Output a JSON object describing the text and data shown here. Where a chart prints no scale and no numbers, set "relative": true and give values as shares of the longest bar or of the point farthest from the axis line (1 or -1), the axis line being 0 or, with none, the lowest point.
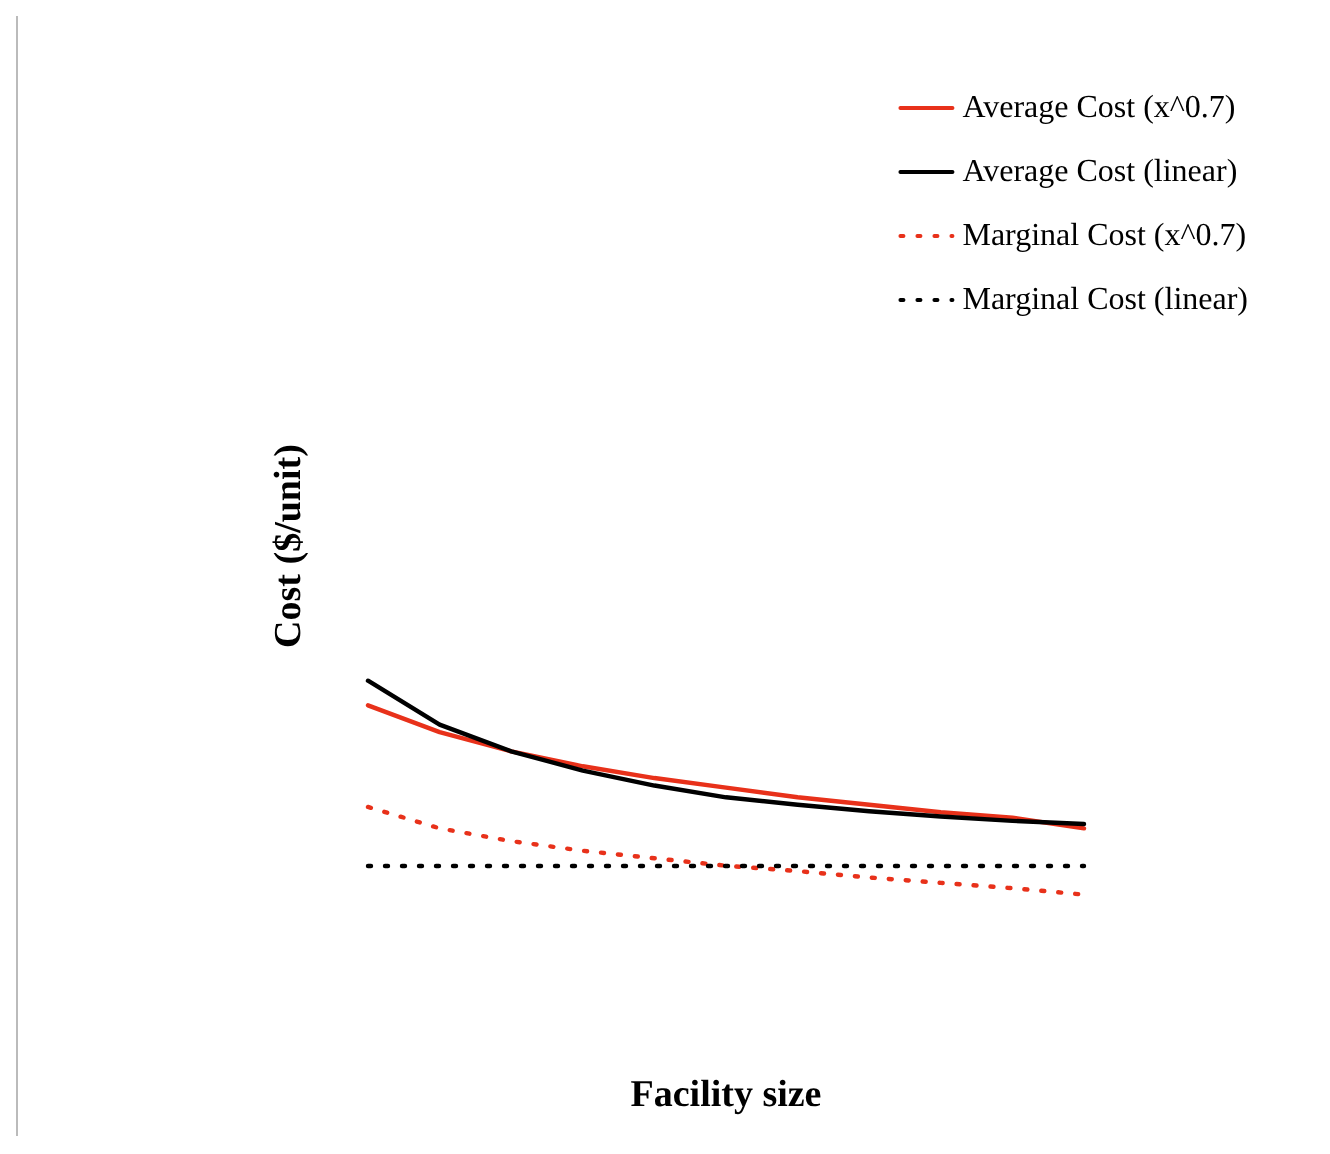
{
  "chart_data": {
    "type": "line",
    "relative": true,
    "xlabel": "Facility size",
    "ylabel": "Cost ($/unit)",
    "categories": [
      null,
      null,
      null,
      null,
      null,
      null,
      null,
      null,
      null,
      null,
      null
    ],
    "legend": "top right",
    "grid": false,
    "marker": "none",
    "series": [
      {
        "name": "Average Cost (x^0.7)",
        "color": "#e8311a",
        "line_style": "solid",
        "values": [
          0.885,
          0.76,
          0.67,
          0.6,
          0.545,
          0.5,
          0.455,
          0.42,
          0.385,
          0.36,
          0.31
        ]
      },
      {
        "name": "Average Cost (linear)",
        "color": "#000000",
        "line_style": "solid",
        "values": [
          1,
          0.795,
          0.67,
          0.58,
          0.51,
          0.455,
          0.42,
          0.39,
          0.365,
          0.345,
          0.33
        ]
      },
      {
        "name": "Marginal Cost (x^0.7)",
        "color": "#e8311a",
        "line_style": "dotted",
        "values": [
          0.41,
          0.31,
          0.25,
          0.205,
          0.17,
          0.135,
          0.11,
          0.08,
          0.055,
          0.03,
          0
        ]
      },
      {
        "name": "Marginal Cost (linear)",
        "color": "#000000",
        "line_style": "dotted",
        "values": [
          0.134,
          0.134,
          0.134,
          0.134,
          0.134,
          0.134,
          0.134,
          0.134,
          0.134,
          0.134,
          0.134
        ]
      }
    ]
  }
}
